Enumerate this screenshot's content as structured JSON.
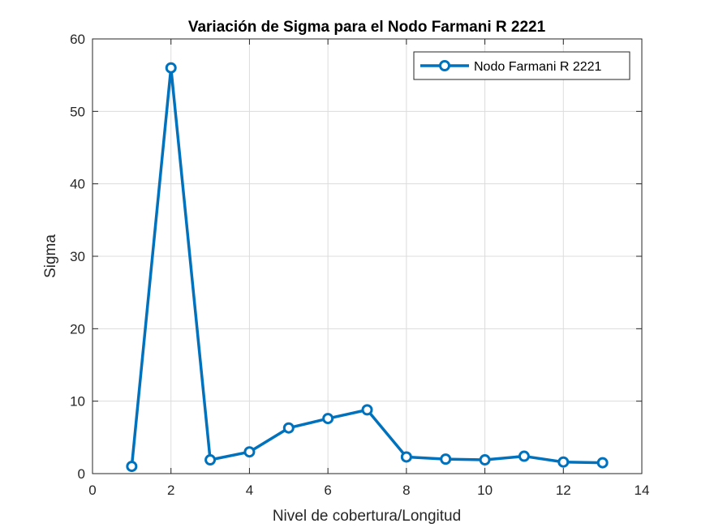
{
  "chart_data": {
    "type": "line",
    "title": "Variación de Sigma para el Nodo Farmani R 2221",
    "xlabel": "Nivel de cobertura/Longitud",
    "ylabel": "Sigma",
    "xlim": [
      0,
      14
    ],
    "ylim": [
      0,
      60
    ],
    "xticks": [
      "0",
      "2",
      "4",
      "6",
      "8",
      "10",
      "12",
      "14"
    ],
    "yticks": [
      "0",
      "10",
      "20",
      "30",
      "40",
      "50",
      "60"
    ],
    "grid": true,
    "legend_position": "top-right",
    "series": [
      {
        "name": "Nodo Farmani R 2221",
        "color": "#0072BD",
        "marker": "circle",
        "x": [
          1,
          2,
          3,
          4,
          5,
          6,
          7,
          8,
          9,
          10,
          11,
          12,
          13
        ],
        "y": [
          1.0,
          56.0,
          1.9,
          3.0,
          6.3,
          7.6,
          8.8,
          2.3,
          2.0,
          1.9,
          2.4,
          1.6,
          1.5
        ]
      }
    ]
  }
}
